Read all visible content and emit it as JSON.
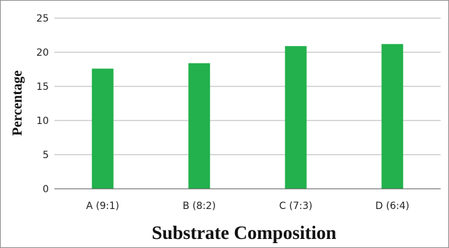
{
  "chart_data": {
    "type": "bar",
    "categories": [
      "A (9:1)",
      "B (8:2)",
      "C (7:3)",
      "D (6:4)"
    ],
    "values": [
      17.6,
      18.4,
      20.9,
      21.2
    ],
    "title": "",
    "xlabel": "Substrate Composition",
    "ylabel": "Percentage",
    "ylim": [
      0,
      25
    ],
    "yticks": [
      "0",
      "5",
      "10",
      "15",
      "20",
      "25"
    ],
    "grid": true,
    "legend": "none",
    "bar_color": "#22b14c",
    "grid_color": "#b3b3b3",
    "axis_color": "#555555"
  }
}
